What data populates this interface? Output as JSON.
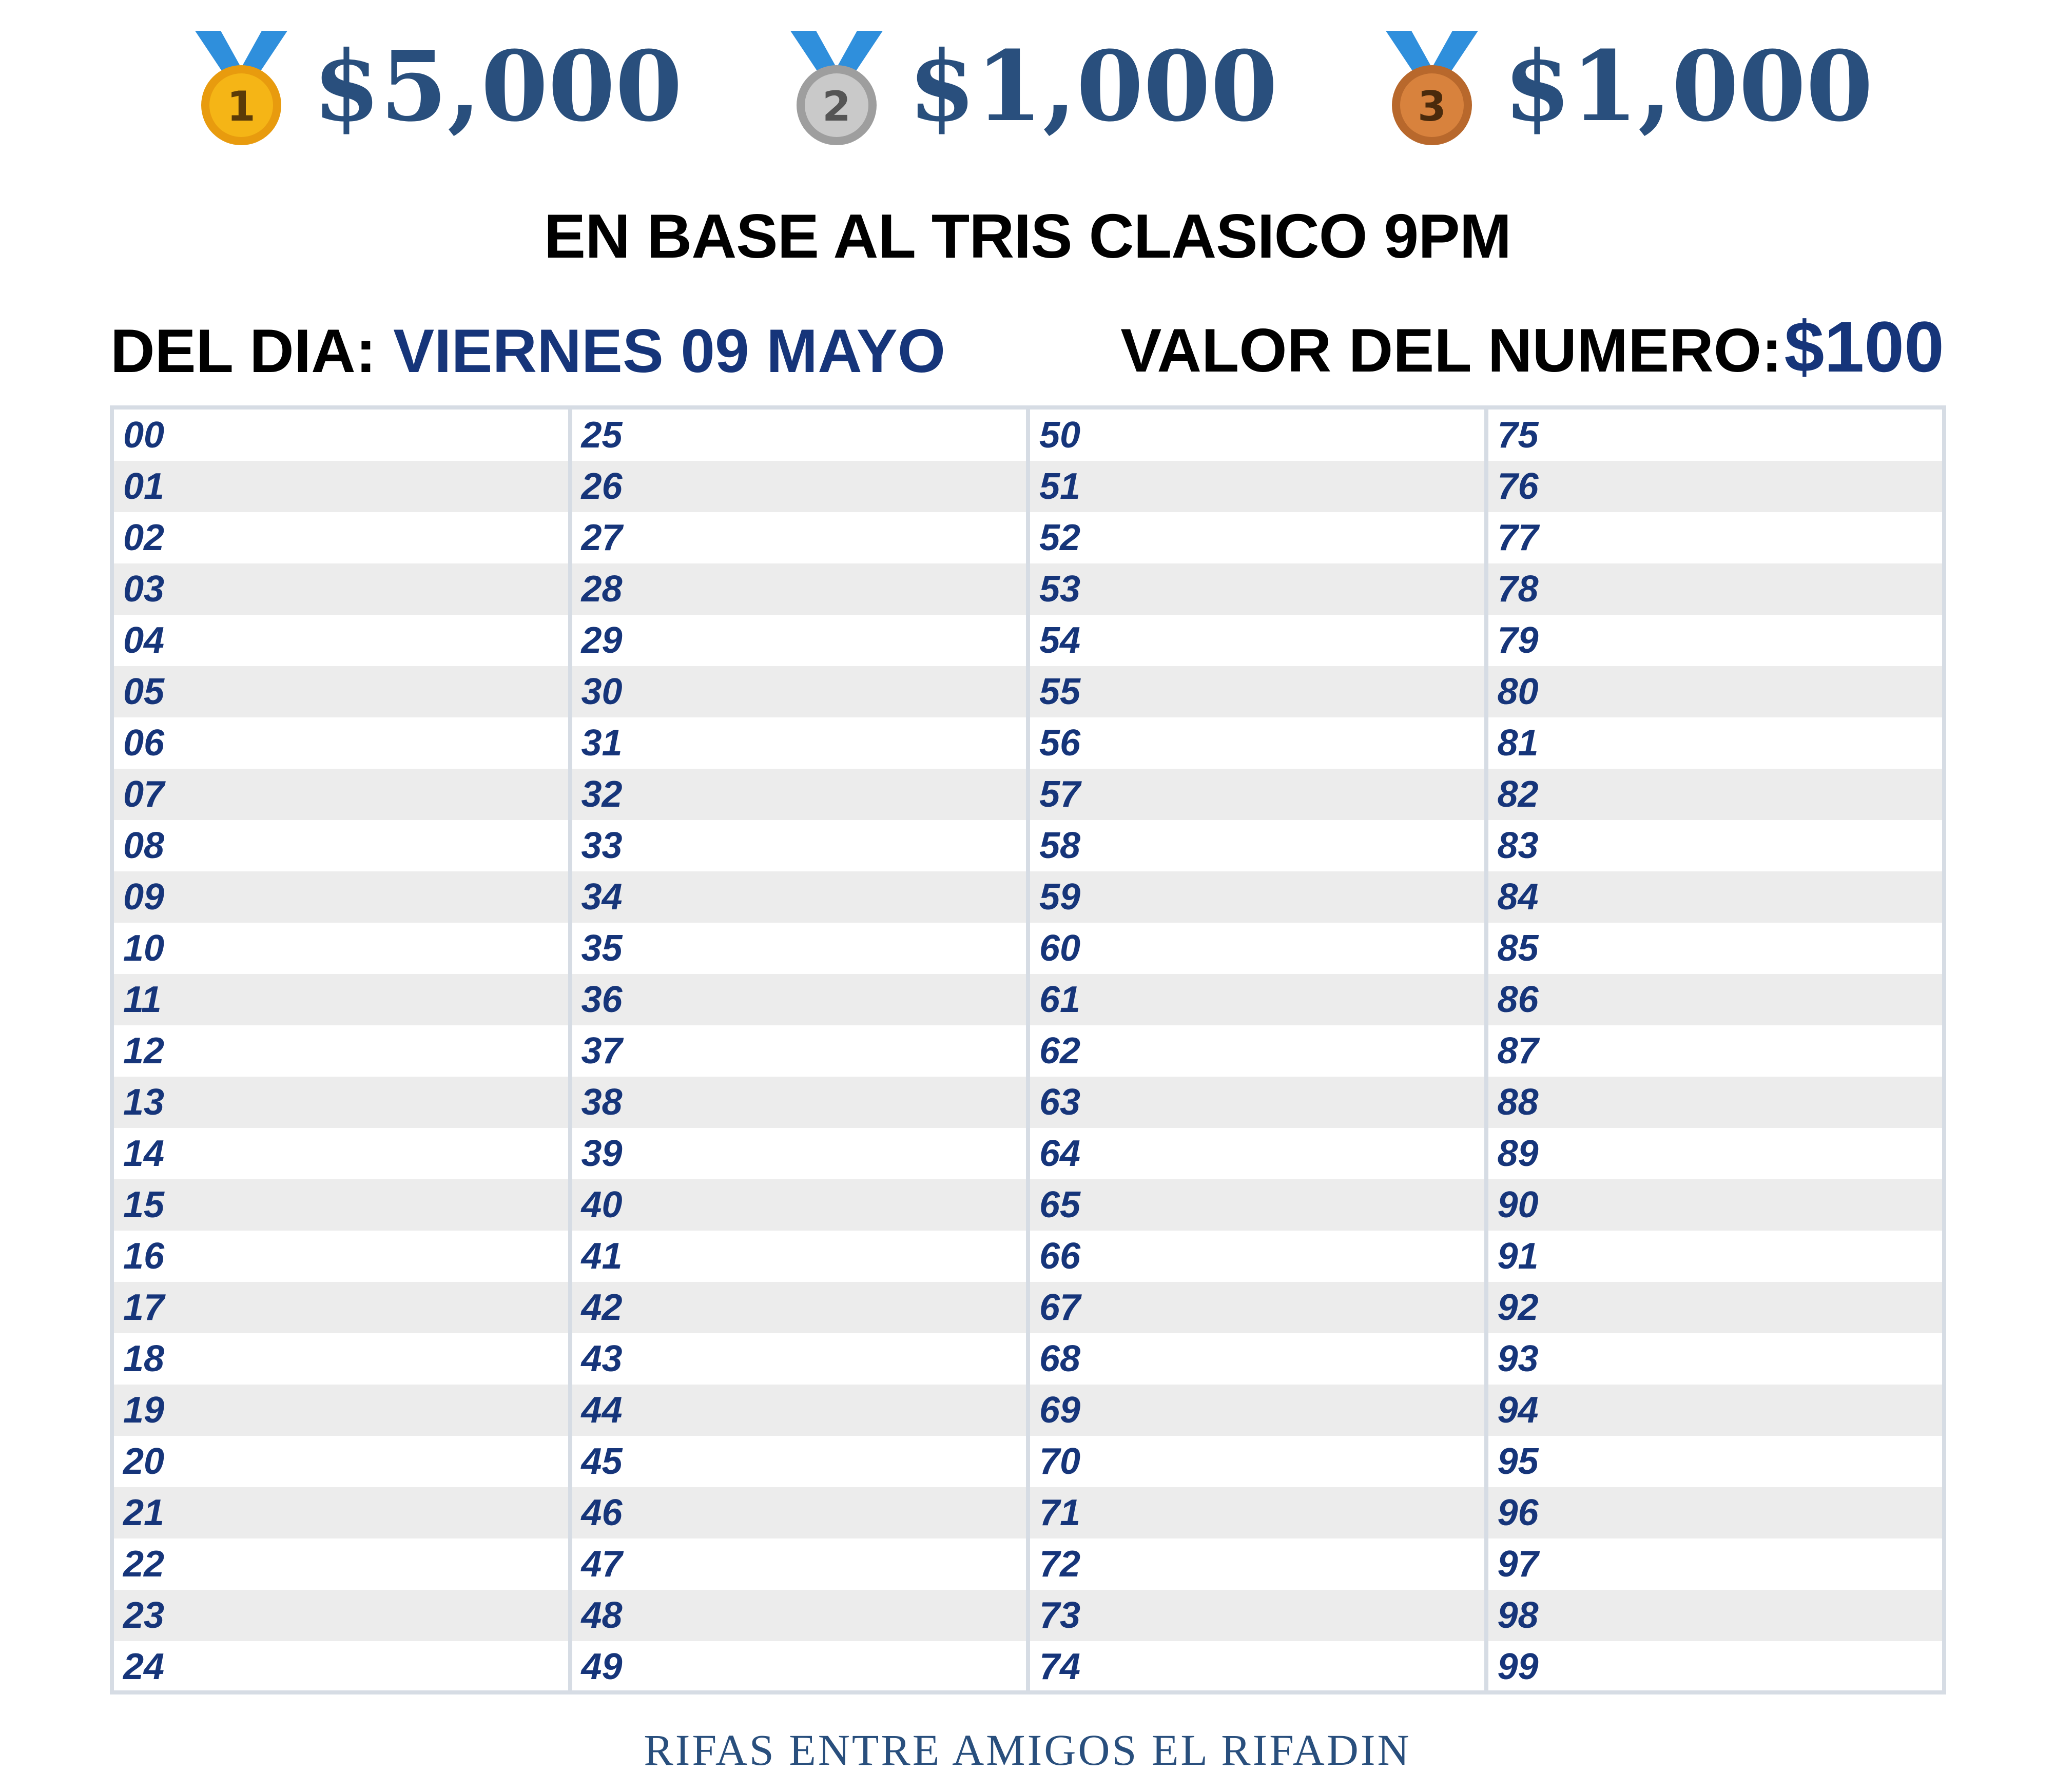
{
  "prizes": [
    {
      "place": "1",
      "amount": "$5,000",
      "medal_color": "#f5b516",
      "medal_rim": "#e89b0e",
      "medal_icon": "gold-medal-icon"
    },
    {
      "place": "2",
      "amount": "$1,000",
      "medal_color": "#c9c9c9",
      "medal_rim": "#9e9e9e",
      "medal_icon": "silver-medal-icon"
    },
    {
      "place": "3",
      "amount": "$1,000",
      "medal_color": "#d8823d",
      "medal_rim": "#b8682c",
      "medal_icon": "bronze-medal-icon"
    }
  ],
  "title": "EN BASE AL TRIS CLASICO 9PM",
  "day": {
    "label": "DEL DIA:",
    "value": "VIERNES 09 MAYO"
  },
  "price": {
    "label": "VALOR DEL NUMERO:",
    "value": "$100"
  },
  "numbers": [
    [
      "00",
      "01",
      "02",
      "03",
      "04",
      "05",
      "06",
      "07",
      "08",
      "09",
      "10",
      "11",
      "12",
      "13",
      "14",
      "15",
      "16",
      "17",
      "18",
      "19",
      "20",
      "21",
      "22",
      "23",
      "24"
    ],
    [
      "25",
      "26",
      "27",
      "28",
      "29",
      "30",
      "31",
      "32",
      "33",
      "34",
      "35",
      "36",
      "37",
      "38",
      "39",
      "40",
      "41",
      "42",
      "43",
      "44",
      "45",
      "46",
      "47",
      "48",
      "49"
    ],
    [
      "50",
      "51",
      "52",
      "53",
      "54",
      "55",
      "56",
      "57",
      "58",
      "59",
      "60",
      "61",
      "62",
      "63",
      "64",
      "65",
      "66",
      "67",
      "68",
      "69",
      "70",
      "71",
      "72",
      "73",
      "74"
    ],
    [
      "75",
      "76",
      "77",
      "78",
      "79",
      "80",
      "81",
      "82",
      "83",
      "84",
      "85",
      "86",
      "87",
      "88",
      "89",
      "90",
      "91",
      "92",
      "93",
      "94",
      "95",
      "96",
      "97",
      "98",
      "99"
    ]
  ],
  "footer": "RIFAS ENTRE AMIGOS EL RIFADIN",
  "colors": {
    "accent": "#16357a",
    "amount": "#294f7d",
    "ribbon": "#2f8fdc",
    "row_alt": "#ececec",
    "border": "#d6dce4"
  }
}
